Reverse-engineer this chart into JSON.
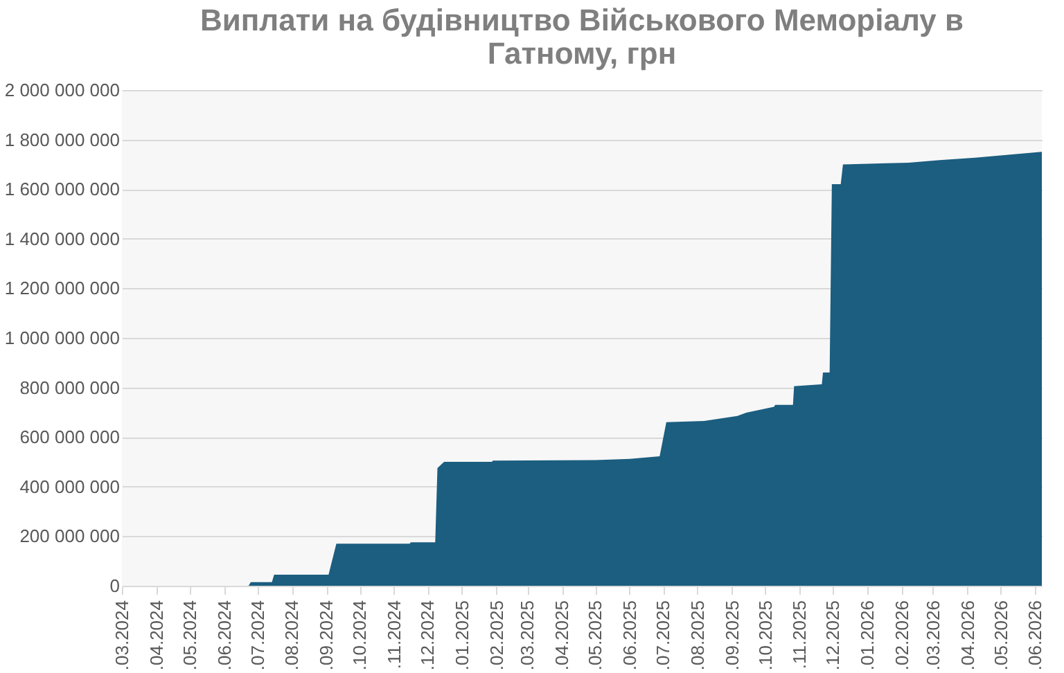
{
  "chart_data": {
    "type": "area",
    "title": "Виплати на будівництво Військового Меморіалу в Гатному, грн",
    "x": [
      "2024-03-01",
      "2024-06-23",
      "2024-06-25",
      "2024-07-14",
      "2024-07-16",
      "2024-09-03",
      "2024-09-10",
      "2024-11-15",
      "2024-11-16",
      "2024-12-08",
      "2024-12-10",
      "2024-12-16",
      "2025-01-28",
      "2025-01-29",
      "2025-05-01",
      "2025-06-01",
      "2025-06-28",
      "2025-07-04",
      "2025-08-07",
      "2025-09-06",
      "2025-09-14",
      "2025-10-09",
      "2025-10-10",
      "2025-10-26",
      "2025-10-27",
      "2025-11-21",
      "2025-11-22",
      "2025-11-28",
      "2025-11-30",
      "2025-12-08",
      "2025-12-10",
      "2026-02-07",
      "2026-03-07",
      "2026-04-08",
      "2026-05-08",
      "2026-06-07"
    ],
    "series": [
      {
        "color": "#1b5e80",
        "values": [
          0,
          0,
          15000000,
          15000000,
          45000000,
          45000000,
          170000000,
          170000000,
          175000000,
          175000000,
          475000000,
          500000000,
          500000000,
          505000000,
          507000000,
          512000000,
          522000000,
          660000000,
          665000000,
          685000000,
          698000000,
          722000000,
          730000000,
          730000000,
          805000000,
          813000000,
          860000000,
          860000000,
          1620000000,
          1620000000,
          1700000000,
          1707000000,
          1717000000,
          1727000000,
          1739000000,
          1751000000
        ]
      }
    ],
    "xlim": [
      "2024-03-01",
      "2026-06-07"
    ],
    "xticks": [
      {
        "value": "2024-03",
        "label": ".03.2024"
      },
      {
        "value": "2024-04",
        "label": ".04.2024"
      },
      {
        "value": "2024-05",
        "label": ".05.2024"
      },
      {
        "value": "2024-06",
        "label": ".06.2024"
      },
      {
        "value": "2024-07",
        "label": ".07.2024"
      },
      {
        "value": "2024-08",
        "label": ".08.2024"
      },
      {
        "value": "2024-09",
        "label": ".09.2024"
      },
      {
        "value": "2024-10",
        "label": ".10.2024"
      },
      {
        "value": "2024-11",
        "label": ".11.2024"
      },
      {
        "value": "2024-12",
        "label": ".12.2024"
      },
      {
        "value": "2025-01",
        "label": ".01.2025"
      },
      {
        "value": "2025-02",
        "label": ".02.2025"
      },
      {
        "value": "2025-03",
        "label": ".03.2025"
      },
      {
        "value": "2025-04",
        "label": ".04.2025"
      },
      {
        "value": "2025-05",
        "label": ".05.2025"
      },
      {
        "value": "2025-06",
        "label": ".06.2025"
      },
      {
        "value": "2025-07",
        "label": ".07.2025"
      },
      {
        "value": "2025-08",
        "label": ".08.2025"
      },
      {
        "value": "2025-09",
        "label": ".09.2025"
      },
      {
        "value": "2025-10",
        "label": ".10.2025"
      },
      {
        "value": "2025-11",
        "label": ".11.2025"
      },
      {
        "value": "2025-12",
        "label": ".12.2025"
      },
      {
        "value": "2026-01",
        "label": ".01.2026"
      },
      {
        "value": "2026-02",
        "label": ".02.2026"
      },
      {
        "value": "2026-03",
        "label": ".03.2026"
      },
      {
        "value": "2026-04",
        "label": ".04.2026"
      },
      {
        "value": "2026-05",
        "label": ".05.2026"
      },
      {
        "value": "2026-06",
        "label": ".06.2026"
      }
    ],
    "ylim": [
      0,
      2000000000
    ],
    "yticks": [
      0,
      {
        "value": 200000000,
        "label": "200 000 000"
      },
      {
        "value": 400000000,
        "label": "400 000 000"
      },
      {
        "value": 600000000,
        "label": "600 000 000"
      },
      {
        "value": 800000000,
        "label": "800 000 000"
      },
      {
        "value": 1000000000,
        "label": "1 000 000 000"
      },
      {
        "value": 1200000000,
        "label": "1 200 000 000"
      },
      {
        "value": 1400000000,
        "label": "1 400 000 000"
      },
      {
        "value": 1600000000,
        "label": "1 600 000 000"
      },
      {
        "value": 1800000000,
        "label": "1 800 000 000"
      },
      {
        "value": 2000000000,
        "label": "2 000 000 000"
      }
    ],
    "grid": "y"
  }
}
